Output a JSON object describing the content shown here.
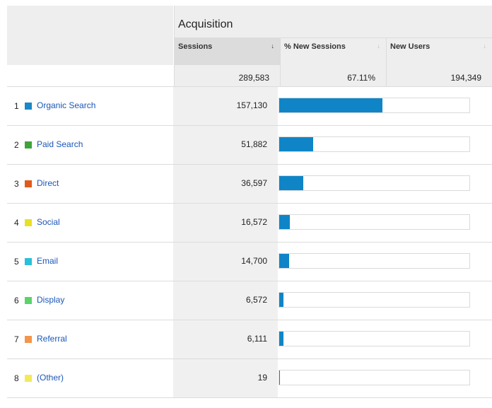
{
  "header": {
    "group_label": "Acquisition",
    "columns": [
      {
        "label": "Sessions",
        "sort_icon": "arrow-down-icon",
        "active": true
      },
      {
        "label": "% New Sessions",
        "sort_icon": "arrow-down-icon",
        "active": false
      },
      {
        "label": "New Users",
        "sort_icon": "arrow-down-icon",
        "active": false
      }
    ]
  },
  "totals": {
    "sessions": "289,583",
    "pct_new_sessions": "67.11%",
    "new_users": "194,349"
  },
  "rows": [
    {
      "rank": "1",
      "name": "Organic Search",
      "color": "#1a87c8",
      "sessions": "157,130",
      "share": 0.5426
    },
    {
      "rank": "2",
      "name": "Paid Search",
      "color": "#3ea33a",
      "sessions": "51,882",
      "share": 0.1792
    },
    {
      "rank": "3",
      "name": "Direct",
      "color": "#e15a1b",
      "sessions": "36,597",
      "share": 0.1264
    },
    {
      "rank": "4",
      "name": "Social",
      "color": "#e8e022",
      "sessions": "16,572",
      "share": 0.0572
    },
    {
      "rank": "5",
      "name": "Email",
      "color": "#28c0db",
      "sessions": "14,700",
      "share": 0.0508
    },
    {
      "rank": "6",
      "name": "Display",
      "color": "#5ad36a",
      "sessions": "6,572",
      "share": 0.0227
    },
    {
      "rank": "7",
      "name": "Referral",
      "color": "#f4954a",
      "sessions": "6,111",
      "share": 0.0211
    },
    {
      "rank": "8",
      "name": "(Other)",
      "color": "#f2ea5a",
      "sessions": "19",
      "share": 0.0001
    }
  ]
}
